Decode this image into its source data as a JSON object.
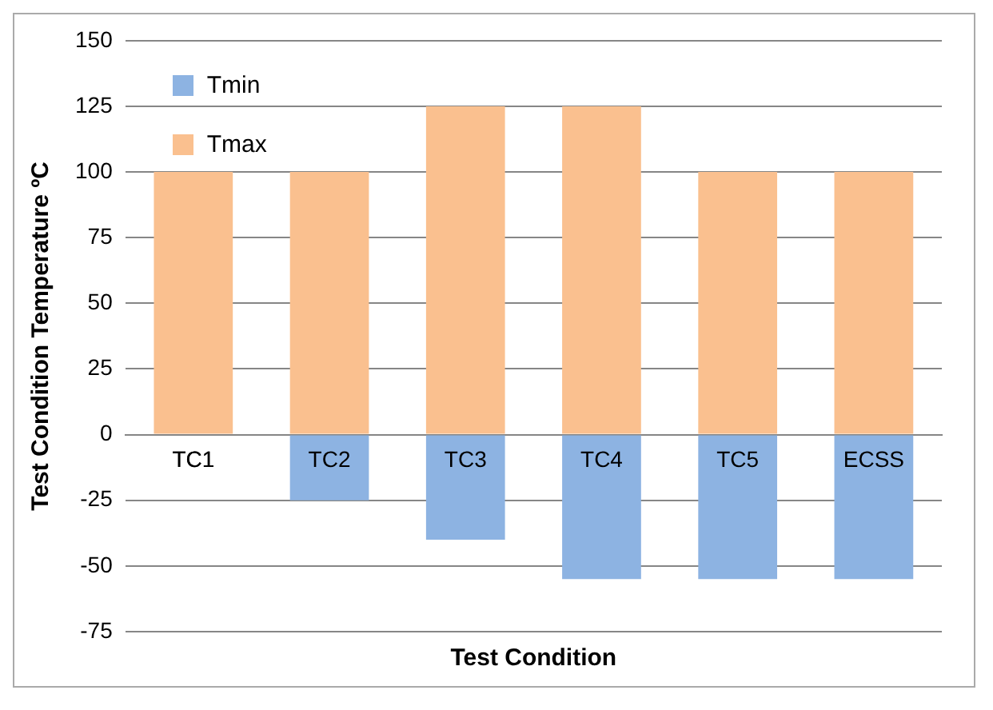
{
  "chart_data": {
    "type": "bar",
    "xlabel": "Test Condition",
    "ylabel": "Test Condition Temperature ºC",
    "categories": [
      "TC1",
      "TC2",
      "TC3",
      "TC4",
      "TC5",
      "ECSS"
    ],
    "series": [
      {
        "name": "Tmin",
        "color": "#8db3e2",
        "values": [
          0,
          -25,
          -40,
          -55,
          -55,
          -55
        ]
      },
      {
        "name": "Tmax",
        "color": "#fac08f",
        "values": [
          100,
          100,
          125,
          125,
          100,
          100
        ]
      }
    ],
    "stacked": true,
    "ylim": [
      -75,
      150
    ],
    "yticks": [
      -75,
      -50,
      -25,
      0,
      25,
      50,
      75,
      100,
      125,
      150
    ],
    "grid": "y",
    "legend": "top left"
  }
}
